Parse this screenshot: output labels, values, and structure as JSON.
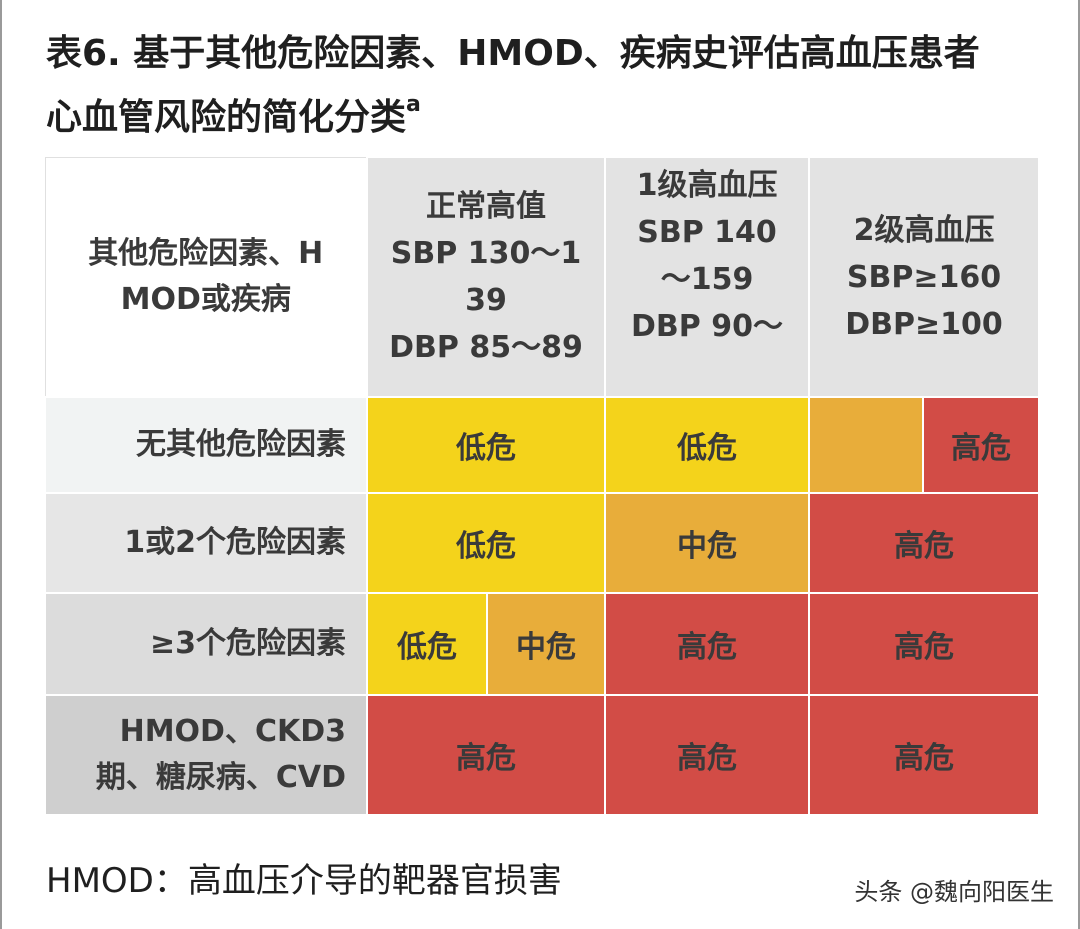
{
  "title": {
    "line1": "表6. 基于其他危险因素、HMOD、疾病史评估高血压患者",
    "line2": "心血管风险的简化分类",
    "superscript": "a"
  },
  "header": {
    "corner": [
      "其他危险因素、H",
      "MOD或疾病"
    ],
    "col1": [
      "正常高值",
      "SBP 130～1",
      "39",
      "DBP 85～89"
    ],
    "col2": [
      "1级高血压",
      "SBP 140",
      "～159",
      "DBP 90～"
    ],
    "col3": [
      "2级高血压",
      "SBP≥160",
      "DBP≥100"
    ]
  },
  "rows": [
    {
      "label": [
        "无其他危险因素"
      ],
      "cells": [
        "低危",
        "低危",
        "",
        "高危"
      ]
    },
    {
      "label": [
        "1或2个危险因素"
      ],
      "cells": [
        "低危",
        "中危",
        "高危"
      ]
    },
    {
      "label": [
        "≥3个危险因素"
      ],
      "cells": [
        "低危",
        "中危",
        "高危",
        "高危"
      ]
    },
    {
      "label": [
        "HMOD、CKD3",
        "期、糖尿病、CVD"
      ],
      "cells": [
        "高危",
        "高危",
        "高危"
      ]
    }
  ],
  "colors": {
    "low": "#f4d31b",
    "mid": "#e8ad3a",
    "high": "#d24c46"
  },
  "footnote": "HMOD：高血压介导的靶器官损害",
  "watermark": "头条 @魏向阳医生"
}
